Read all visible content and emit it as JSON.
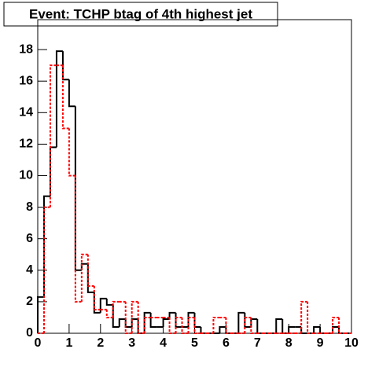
{
  "chart_data": {
    "type": "histogram",
    "title": "Event: TCHP btag of 4th highest jet",
    "bins": [
      0,
      0.2,
      0.4,
      0.6,
      0.8,
      1,
      1.2,
      1.4,
      1.6,
      1.8,
      2,
      2.2,
      2.4,
      2.6,
      2.8,
      3,
      3.2,
      3.4,
      3.6,
      3.8,
      4,
      4.2,
      4.4,
      4.6,
      4.8,
      5,
      5.2,
      5.4,
      5.6,
      5.8,
      6,
      6.2,
      6.4,
      6.6,
      6.8,
      7,
      7.2,
      7.4,
      7.6,
      7.8,
      8,
      8.2,
      8.4,
      8.6,
      8.8,
      9,
      9.2,
      9.4,
      9.6,
      9.8,
      10
    ],
    "series": [
      {
        "color": "#000000",
        "dash": false,
        "values": [
          2.3,
          8.7,
          11.8,
          17.9,
          16.1,
          14.4,
          4,
          4.4,
          2.6,
          1.3,
          2.2,
          1.8,
          0.4,
          0.9,
          0.4,
          0.9,
          0,
          1.3,
          0.4,
          0.4,
          0.9,
          1.3,
          0.4,
          0.4,
          1.3,
          0.4,
          0,
          0,
          0,
          0.4,
          0,
          0,
          1.3,
          0.4,
          0.9,
          0,
          0,
          0,
          0.9,
          0,
          0.4,
          0.4,
          0,
          0,
          0.4,
          0,
          0,
          0.4,
          0,
          0
        ]
      },
      {
        "color": "#ff0000",
        "dash": true,
        "values": [
          0,
          8,
          17,
          17,
          13,
          10,
          2,
          5,
          3,
          1.5,
          1.5,
          1,
          2,
          2,
          0,
          2,
          0,
          1,
          1,
          1,
          1,
          0,
          1,
          0,
          1,
          0,
          0,
          0,
          1,
          1,
          0,
          0,
          0,
          1,
          0,
          0,
          0,
          0,
          0,
          0,
          0,
          0,
          2,
          0,
          0,
          0,
          0,
          1,
          0,
          0
        ]
      }
    ],
    "xlim": [
      0,
      10
    ],
    "ylim": [
      0,
      19.9
    ],
    "xticks": [
      0,
      1,
      2,
      3,
      4,
      5,
      6,
      7,
      8,
      9,
      10
    ],
    "yticks": [
      0,
      2,
      4,
      6,
      8,
      10,
      12,
      14,
      16,
      18
    ]
  }
}
